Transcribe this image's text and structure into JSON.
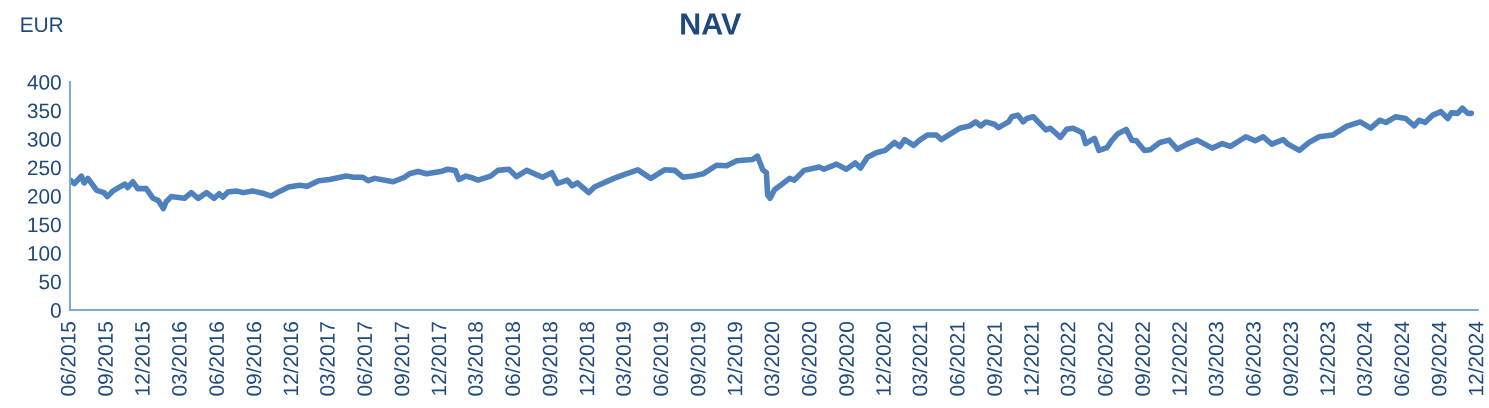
{
  "chart_data": {
    "type": "line",
    "title": "NAV",
    "ylabel": "EUR",
    "grid": false,
    "legend": false,
    "marker": "none",
    "line_style": "solid",
    "ylim": [
      0,
      400
    ],
    "yticks": [
      0,
      50,
      100,
      150,
      200,
      250,
      300,
      350,
      400
    ],
    "xlim": [
      "2015-06-01",
      "2024-12-01"
    ],
    "xticks": [
      {
        "value": "2015-06",
        "label": "06/2015"
      },
      {
        "value": "2015-09",
        "label": "09/2015"
      },
      {
        "value": "2015-12",
        "label": "12/2015"
      },
      {
        "value": "2016-03",
        "label": "03/2016"
      },
      {
        "value": "2016-06",
        "label": "06/2016"
      },
      {
        "value": "2016-09",
        "label": "09/2016"
      },
      {
        "value": "2016-12",
        "label": "12/2016"
      },
      {
        "value": "2017-03",
        "label": "03/2017"
      },
      {
        "value": "2017-06",
        "label": "06/2017"
      },
      {
        "value": "2017-09",
        "label": "09/2017"
      },
      {
        "value": "2017-12",
        "label": "12/2017"
      },
      {
        "value": "2018-03",
        "label": "03/2018"
      },
      {
        "value": "2018-06",
        "label": "06/2018"
      },
      {
        "value": "2018-09",
        "label": "09/2018"
      },
      {
        "value": "2018-12",
        "label": "12/2018"
      },
      {
        "value": "2019-03",
        "label": "03/2019"
      },
      {
        "value": "2019-06",
        "label": "06/2019"
      },
      {
        "value": "2019-09",
        "label": "09/2019"
      },
      {
        "value": "2019-12",
        "label": "12/2019"
      },
      {
        "value": "2020-03",
        "label": "03/2020"
      },
      {
        "value": "2020-06",
        "label": "06/2020"
      },
      {
        "value": "2020-09",
        "label": "09/2020"
      },
      {
        "value": "2020-12",
        "label": "12/2020"
      },
      {
        "value": "2021-03",
        "label": "03/2021"
      },
      {
        "value": "2021-06",
        "label": "06/2021"
      },
      {
        "value": "2021-09",
        "label": "09/2021"
      },
      {
        "value": "2021-12",
        "label": "12/2021"
      },
      {
        "value": "2022-03",
        "label": "03/2022"
      },
      {
        "value": "2022-06",
        "label": "06/2022"
      },
      {
        "value": "2022-09",
        "label": "09/2022"
      },
      {
        "value": "2022-12",
        "label": "12/2022"
      },
      {
        "value": "2023-03",
        "label": "03/2023"
      },
      {
        "value": "2023-06",
        "label": "06/2023"
      },
      {
        "value": "2023-09",
        "label": "09/2023"
      },
      {
        "value": "2023-12",
        "label": "12/2023"
      },
      {
        "value": "2024-03",
        "label": "03/2024"
      },
      {
        "value": "2024-06",
        "label": "06/2024"
      },
      {
        "value": "2024-09",
        "label": "09/2024"
      },
      {
        "value": "2024-12",
        "label": "12/2024"
      }
    ],
    "x": [
      "2015-06-01",
      "2015-06-12",
      "2015-06-29",
      "2015-07-06",
      "2015-07-15",
      "2015-08-06",
      "2015-08-24",
      "2015-09-01",
      "2015-09-15",
      "2015-10-14",
      "2015-10-21",
      "2015-11-03",
      "2015-11-15",
      "2015-12-06",
      "2015-12-23",
      "2016-01-05",
      "2016-01-17",
      "2016-01-24",
      "2016-02-06",
      "2016-03-09",
      "2016-03-26",
      "2016-04-12",
      "2016-05-03",
      "2016-05-21",
      "2016-06-03",
      "2016-06-12",
      "2016-06-24",
      "2016-07-15",
      "2016-08-01",
      "2016-08-24",
      "2016-09-18",
      "2016-10-09",
      "2016-11-01",
      "2016-11-21",
      "2016-12-18",
      "2017-01-06",
      "2017-02-03",
      "2017-03-02",
      "2017-04-12",
      "2017-05-01",
      "2017-05-23",
      "2017-06-05",
      "2017-06-21",
      "2017-08-06",
      "2017-09-03",
      "2017-09-15",
      "2017-10-06",
      "2017-10-27",
      "2017-12-01",
      "2017-12-18",
      "2018-01-06",
      "2018-01-15",
      "2018-02-01",
      "2018-02-12",
      "2018-03-03",
      "2018-04-03",
      "2018-04-21",
      "2018-05-18",
      "2018-06-06",
      "2018-07-01",
      "2018-08-09",
      "2018-09-01",
      "2018-09-15",
      "2018-10-09",
      "2018-10-21",
      "2018-11-03",
      "2018-12-01",
      "2018-12-15",
      "2019-02-01",
      "2019-03-03",
      "2019-04-01",
      "2019-05-03",
      "2019-06-06",
      "2019-07-01",
      "2019-07-21",
      "2019-08-15",
      "2019-09-09",
      "2019-10-12",
      "2019-11-06",
      "2019-12-01",
      "2020-01-09",
      "2020-01-21",
      "2020-02-03",
      "2020-02-12",
      "2020-02-15",
      "2020-02-21",
      "2020-03-03",
      "2020-03-18",
      "2020-04-09",
      "2020-04-21",
      "2020-05-15",
      "2020-06-21",
      "2020-07-03",
      "2020-08-03",
      "2020-08-27",
      "2020-09-18",
      "2020-10-01",
      "2020-10-18",
      "2020-11-09",
      "2020-12-01",
      "2020-12-24",
      "2021-01-06",
      "2021-01-18",
      "2021-02-09",
      "2021-02-24",
      "2021-03-15",
      "2021-04-06",
      "2021-04-18",
      "2021-06-03",
      "2021-06-27",
      "2021-07-12",
      "2021-07-24",
      "2021-08-06",
      "2021-08-27",
      "2021-09-06",
      "2021-10-01",
      "2021-10-09",
      "2021-10-24",
      "2021-11-06",
      "2021-11-15",
      "2021-12-01",
      "2022-01-01",
      "2022-01-12",
      "2022-02-06",
      "2022-02-21",
      "2022-03-09",
      "2022-04-01",
      "2022-04-09",
      "2022-05-01",
      "2022-05-12",
      "2022-06-01",
      "2022-06-12",
      "2022-06-27",
      "2022-07-18",
      "2022-08-01",
      "2022-08-12",
      "2022-09-01",
      "2022-09-15",
      "2022-10-09",
      "2022-11-01",
      "2022-11-21",
      "2022-12-15",
      "2023-01-09",
      "2023-02-15",
      "2023-03-12",
      "2023-04-01",
      "2023-05-09",
      "2023-06-01",
      "2023-06-21",
      "2023-07-12",
      "2023-08-09",
      "2023-08-21",
      "2023-09-18",
      "2023-10-12",
      "2023-11-06",
      "2023-12-09",
      "2024-01-12",
      "2024-02-15",
      "2024-03-12",
      "2024-04-03",
      "2024-04-18",
      "2024-05-12",
      "2024-06-06",
      "2024-06-27",
      "2024-07-09",
      "2024-07-24",
      "2024-08-12",
      "2024-09-01",
      "2024-09-18",
      "2024-09-27",
      "2024-10-12",
      "2024-10-24",
      "2024-11-06",
      "2024-11-15"
    ],
    "series": [
      {
        "color": "#4f81bd",
        "values": [
          228,
          222,
          235,
          223,
          231,
          210,
          206,
          199,
          209,
          221,
          215,
          225,
          213,
          213,
          196,
          192,
          178,
          190,
          199,
          196,
          206,
          196,
          206,
          196,
          204,
          198,
          207,
          209,
          206,
          209,
          205,
          200,
          209,
          216,
          219,
          217,
          227,
          229,
          235,
          233,
          233,
          227,
          231,
          225,
          233,
          239,
          243,
          239,
          243,
          247,
          245,
          229,
          235,
          233,
          228,
          235,
          245,
          247,
          234,
          245,
          233,
          241,
          222,
          228,
          218,
          223,
          206,
          216,
          231,
          239,
          246,
          231,
          246,
          245,
          233,
          235,
          239,
          254,
          253,
          262,
          264,
          270,
          246,
          241,
          202,
          196,
          211,
          219,
          231,
          228,
          245,
          251,
          247,
          256,
          247,
          258,
          249,
          268,
          276,
          280,
          294,
          287,
          299,
          289,
          298,
          307,
          307,
          299,
          319,
          323,
          330,
          323,
          330,
          326,
          320,
          330,
          339,
          342,
          330,
          336,
          339,
          316,
          319,
          303,
          317,
          319,
          311,
          292,
          301,
          280,
          285,
          297,
          309,
          317,
          298,
          297,
          280,
          281,
          294,
          298,
          282,
          291,
          298,
          284,
          292,
          287,
          304,
          297,
          304,
          291,
          299,
          291,
          280,
          294,
          304,
          307,
          322,
          330,
          319,
          333,
          329,
          339,
          336,
          323,
          333,
          329,
          342,
          348,
          336,
          346,
          345,
          354,
          345,
          345
        ]
      }
    ]
  }
}
